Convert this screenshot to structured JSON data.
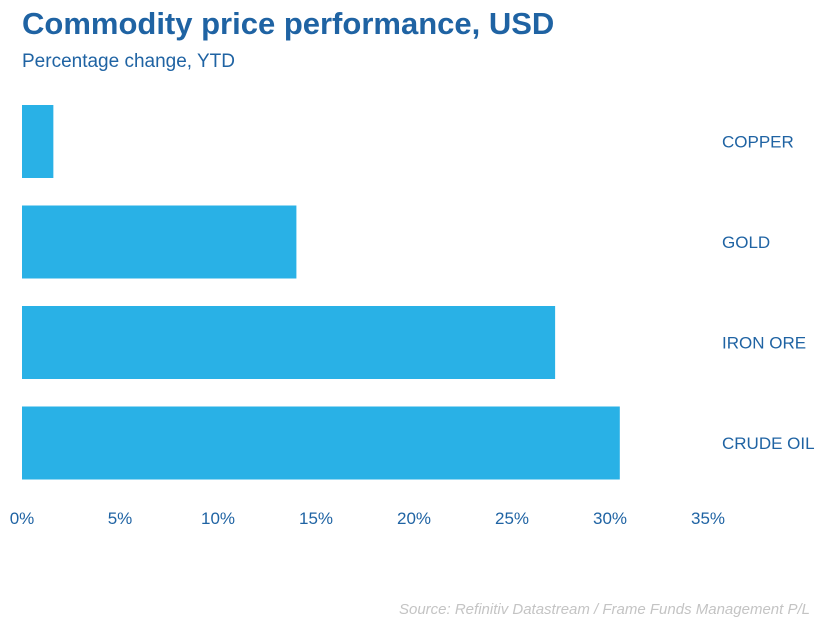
{
  "chart_data": {
    "type": "bar",
    "orientation": "horizontal",
    "title": "Commodity price performance, USD",
    "subtitle": "Percentage change, YTD",
    "categories": [
      "COPPER",
      "GOLD",
      "IRON ORE",
      "CRUDE OIL"
    ],
    "values": [
      1.6,
      14.0,
      27.2,
      30.5
    ],
    "unit": "%",
    "xlim": [
      0,
      35
    ],
    "x_ticks": [
      0,
      5,
      10,
      15,
      20,
      25,
      30,
      35
    ],
    "x_tick_labels": [
      "0%",
      "5%",
      "10%",
      "15%",
      "20%",
      "25%",
      "30%",
      "35%"
    ],
    "xlabel": "",
    "ylabel": "",
    "bar_color": "#29b1e6",
    "text_color": "#1f63a3",
    "grid": false,
    "legend": "none",
    "category_labels_position": "right",
    "source": "Source: Refinitiv Datastream / Frame Funds Management P/L"
  }
}
